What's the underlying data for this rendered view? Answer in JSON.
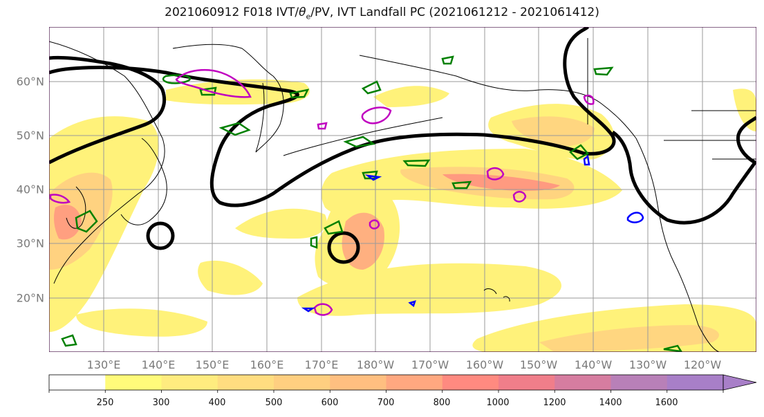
{
  "title": {
    "prefix": "2021060912 F018 IVT/",
    "theta": "θ",
    "theta_sub": "e",
    "suffix": "/PV, IVT Landfall PC (2021061212 - 2021061412)"
  },
  "map": {
    "lat_labels": [
      "60°N",
      "50°N",
      "40°N",
      "30°N",
      "20°N"
    ],
    "lon_labels": [
      "130°E",
      "140°E",
      "150°E",
      "160°E",
      "170°E",
      "180°W",
      "170°W",
      "160°W",
      "150°W",
      "140°W",
      "130°W",
      "120°W"
    ],
    "lat_range": [
      10,
      70
    ],
    "lon_range": [
      120,
      250
    ]
  },
  "colorbar": {
    "ticks": [
      "250",
      "300",
      "400",
      "500",
      "600",
      "700",
      "800",
      "1000",
      "1200",
      "1400",
      "1600"
    ],
    "colors": [
      "#ffffff",
      "#fffb7a",
      "#ffec7f",
      "#ffdd80",
      "#ffcf80",
      "#ffbf80",
      "#ffa880",
      "#ff8a80",
      "#f07e8a",
      "#d67da0",
      "#b880b8",
      "#a87fc8"
    ]
  },
  "legend_colors": {
    "pc_contour": "#000000",
    "theta_e": "#008000",
    "pv": "#c000c0",
    "blue": "#0000ff"
  }
}
